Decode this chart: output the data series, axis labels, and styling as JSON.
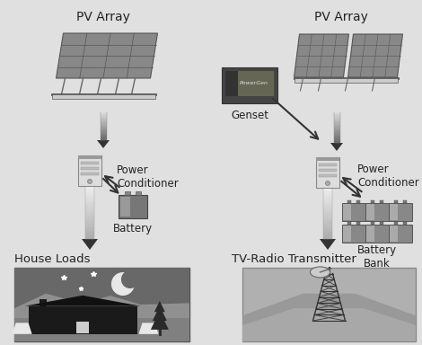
{
  "bg_color": "#e0e0e0",
  "title_left": "PV Array",
  "title_right": "PV Array",
  "label_power_cond": "Power\nConditioner",
  "label_battery": "Battery",
  "label_house": "House Loads",
  "label_genset": "Genset",
  "label_battery_bank": "Battery\nBank",
  "label_tv": "TV-Radio Transmitter",
  "font_title": 10,
  "font_label": 8.5,
  "font_label_large": 9.5
}
